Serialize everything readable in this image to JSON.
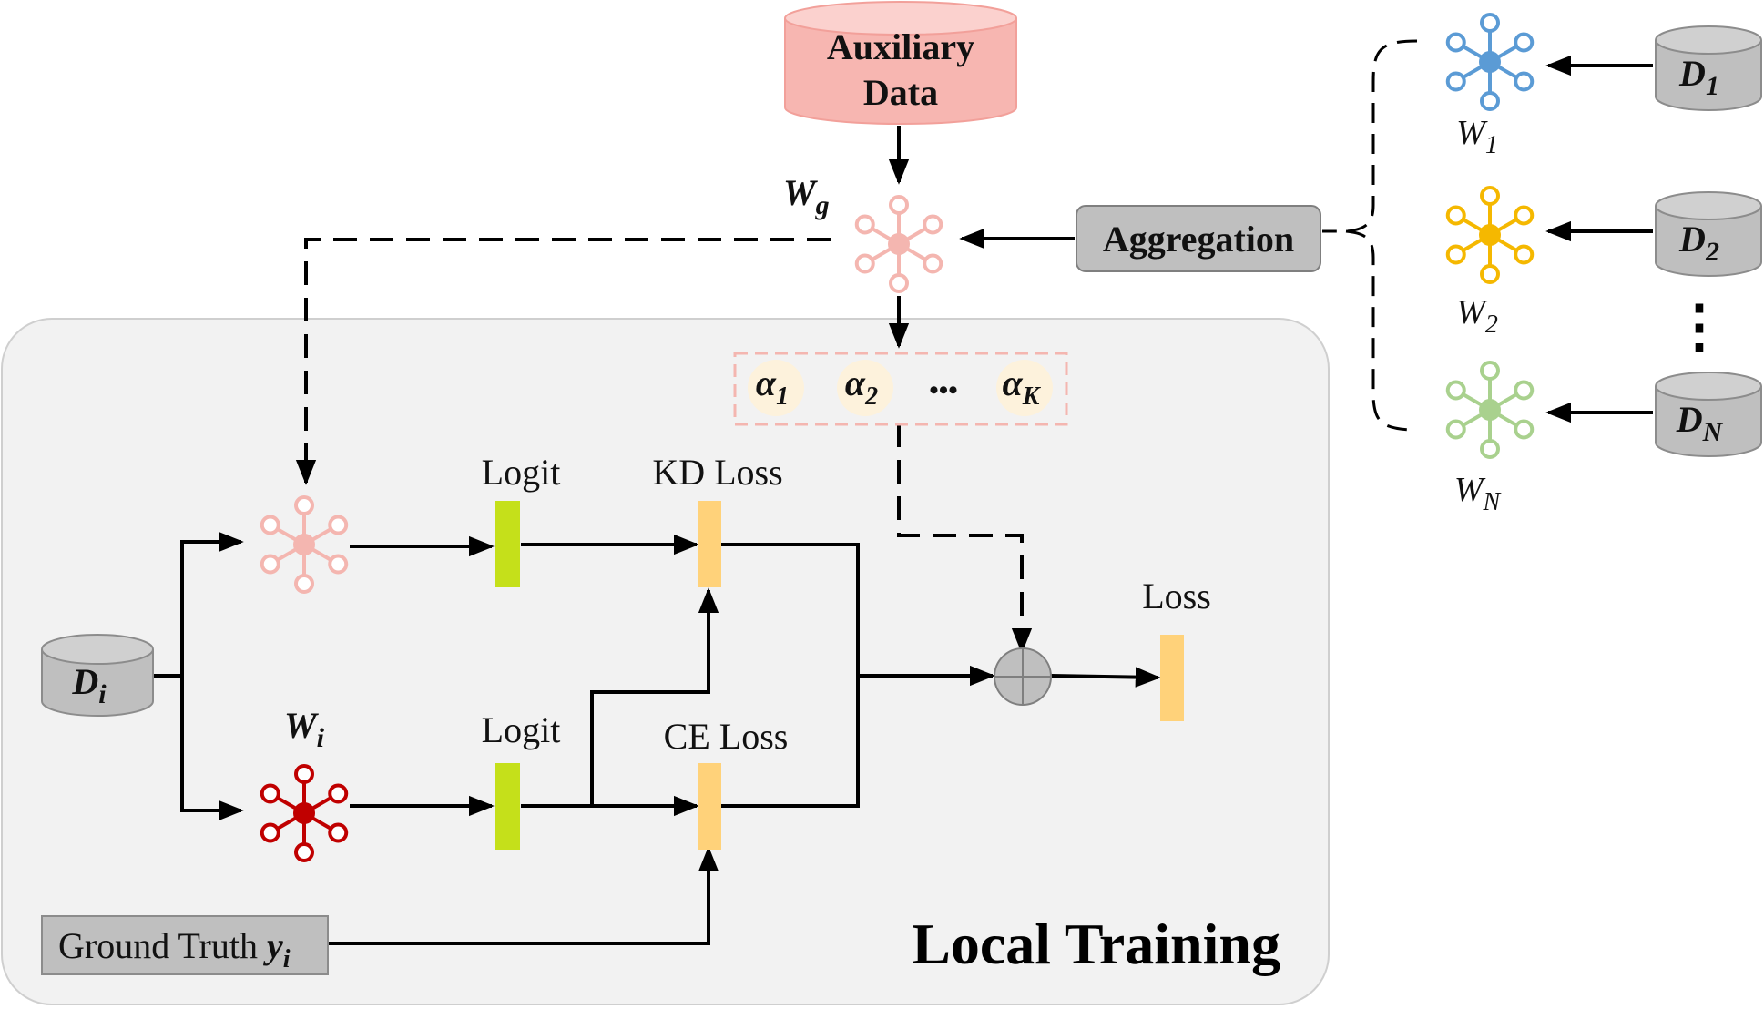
{
  "auxiliary": {
    "line1": "Auxiliary",
    "line2": "Data"
  },
  "global_model": {
    "symbol": "W",
    "subscript": "g"
  },
  "aggregation": {
    "label": "Aggregation"
  },
  "alphas": {
    "items": [
      {
        "symbol": "α",
        "subscript": "1"
      },
      {
        "symbol": "α",
        "subscript": "2"
      },
      {
        "symbol": "α",
        "subscript": "K"
      }
    ],
    "ellipsis": "•••"
  },
  "clients": [
    {
      "model_symbol": "W",
      "model_sub": "1",
      "data_symbol": "D",
      "data_sub": "1",
      "color": "#5b9bd5"
    },
    {
      "model_symbol": "W",
      "model_sub": "2",
      "data_symbol": "D",
      "data_sub": "2",
      "color": "#f5b800"
    },
    {
      "model_symbol": "W",
      "model_sub": "N",
      "data_symbol": "D",
      "data_sub": "N",
      "color": "#a9d18e"
    }
  ],
  "clients_ellipsis": "⋮",
  "local": {
    "title": "Local Training",
    "data": {
      "symbol": "D",
      "subscript": "i"
    },
    "local_model": {
      "symbol": "W",
      "subscript": "i"
    },
    "logit_top": "Logit",
    "logit_bottom": "Logit",
    "kd_loss": "KD Loss",
    "ce_loss": "CE Loss",
    "loss": "Loss",
    "ground_truth": {
      "label": "Ground Truth ",
      "symbol": "y",
      "subscript": "i"
    }
  },
  "colors": {
    "global_model": "#f4b6b0",
    "local_model": "#c00000",
    "logit_bar": "#c5e01a",
    "loss_bar": "#ffd27a",
    "aux_db": "#f7b6b1",
    "gray_db": "#bfbfbf",
    "panel": "#f2f2f2"
  }
}
